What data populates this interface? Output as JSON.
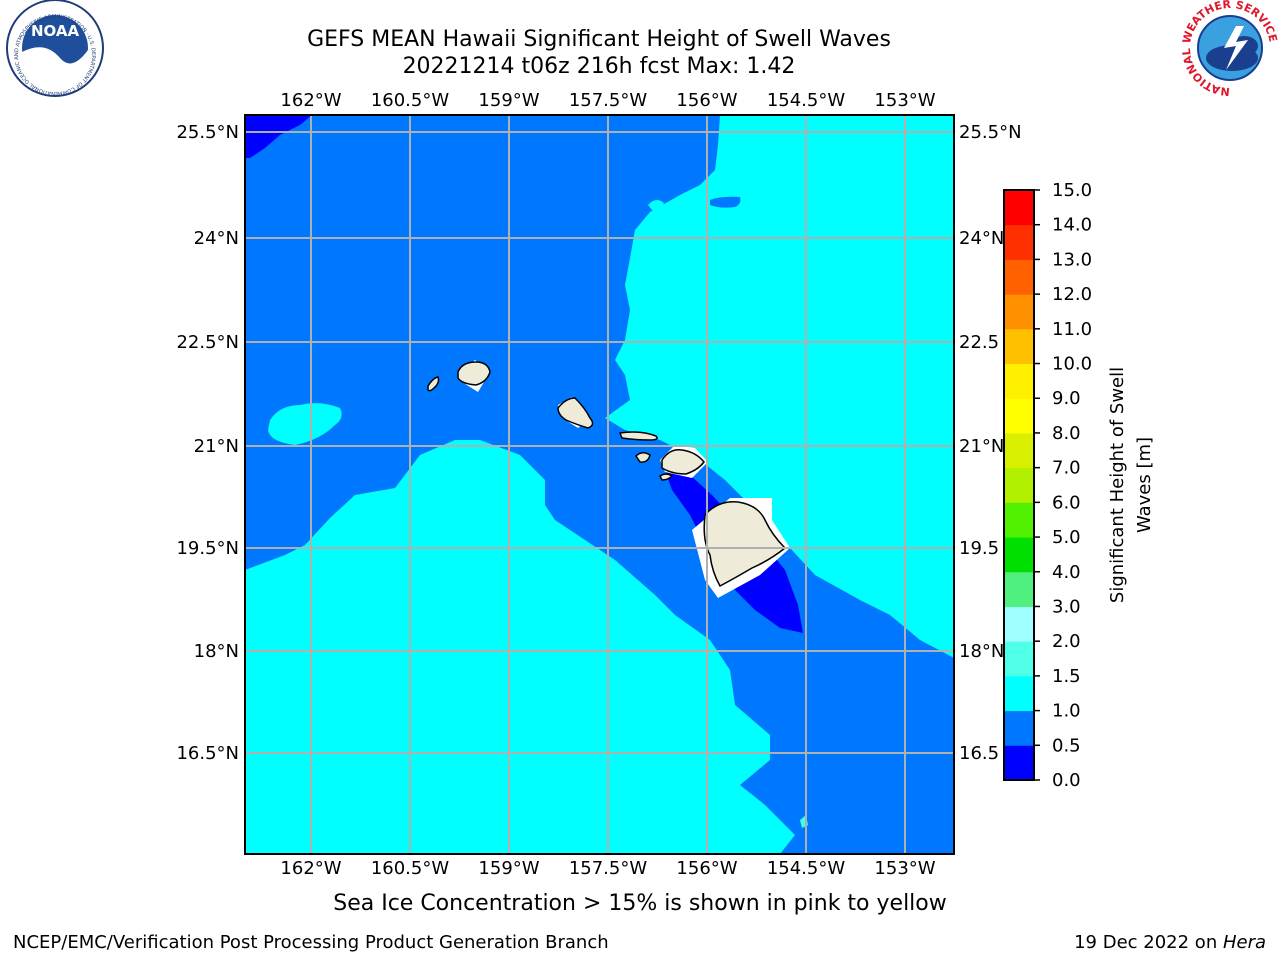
{
  "title": {
    "line1": "GEFS MEAN Hawaii Significant Height of Swell Waves",
    "line2": "20221214 t06z 216h fcst   Max: 1.42"
  },
  "map": {
    "lon_labels": [
      "162°W",
      "160.5°W",
      "159°W",
      "157.5°W",
      "156°W",
      "154.5°W",
      "153°W"
    ],
    "lat_labels": [
      "25.5°N",
      "24°N",
      "22.5°N",
      "21°N",
      "19.5°N",
      "18°N",
      "16.5°N"
    ],
    "lat_labels_right": [
      "25.5°N",
      "24°N",
      "22.5",
      "21°N",
      "19.5",
      "18°N",
      "16.5"
    ],
    "colors": {
      "band_0_0.5": "#0000ff",
      "band_0.5_1.0": "#0077ff",
      "band_1.0_1.5": "#00ffff",
      "band_1.5_2.0": "#40ffe0",
      "land": "#eeebd9",
      "grid": "#b0b0b0"
    }
  },
  "colorbar": {
    "label_line1": "Significant Height of Swell",
    "label_line2": "Waves [m]",
    "ticks": [
      "0.0",
      "0.5",
      "1.0",
      "1.5",
      "2.0",
      "3.0",
      "4.0",
      "5.0",
      "6.0",
      "7.0",
      "8.0",
      "9.0",
      "10.0",
      "11.0",
      "12.0",
      "13.0",
      "14.0",
      "15.0"
    ],
    "colors": [
      "#0000ff",
      "#0077ff",
      "#00ffff",
      "#50ffe8",
      "#a0ffff",
      "#50f080",
      "#00e000",
      "#50f000",
      "#b0f000",
      "#d8f000",
      "#ffff00",
      "#fff000",
      "#ffc000",
      "#ff9000",
      "#ff6000",
      "#ff3000",
      "#ff0000"
    ]
  },
  "note": "Sea Ice Concentration > 15% is shown in pink to yellow",
  "footer": {
    "left": "NCEP/EMC/Verification Post Processing Product Generation Branch",
    "date": "19 Dec 2022 on ",
    "machine": "Hera"
  },
  "logos": {
    "noaa_text": "NOAA",
    "noaa_ring": "NATIONAL OCEANIC AND ATMOSPHERIC ADMINISTRATION · U.S. DEPARTMENT OF COMMERCE",
    "nws_ring": "NATIONAL WEATHER SERVICE"
  }
}
